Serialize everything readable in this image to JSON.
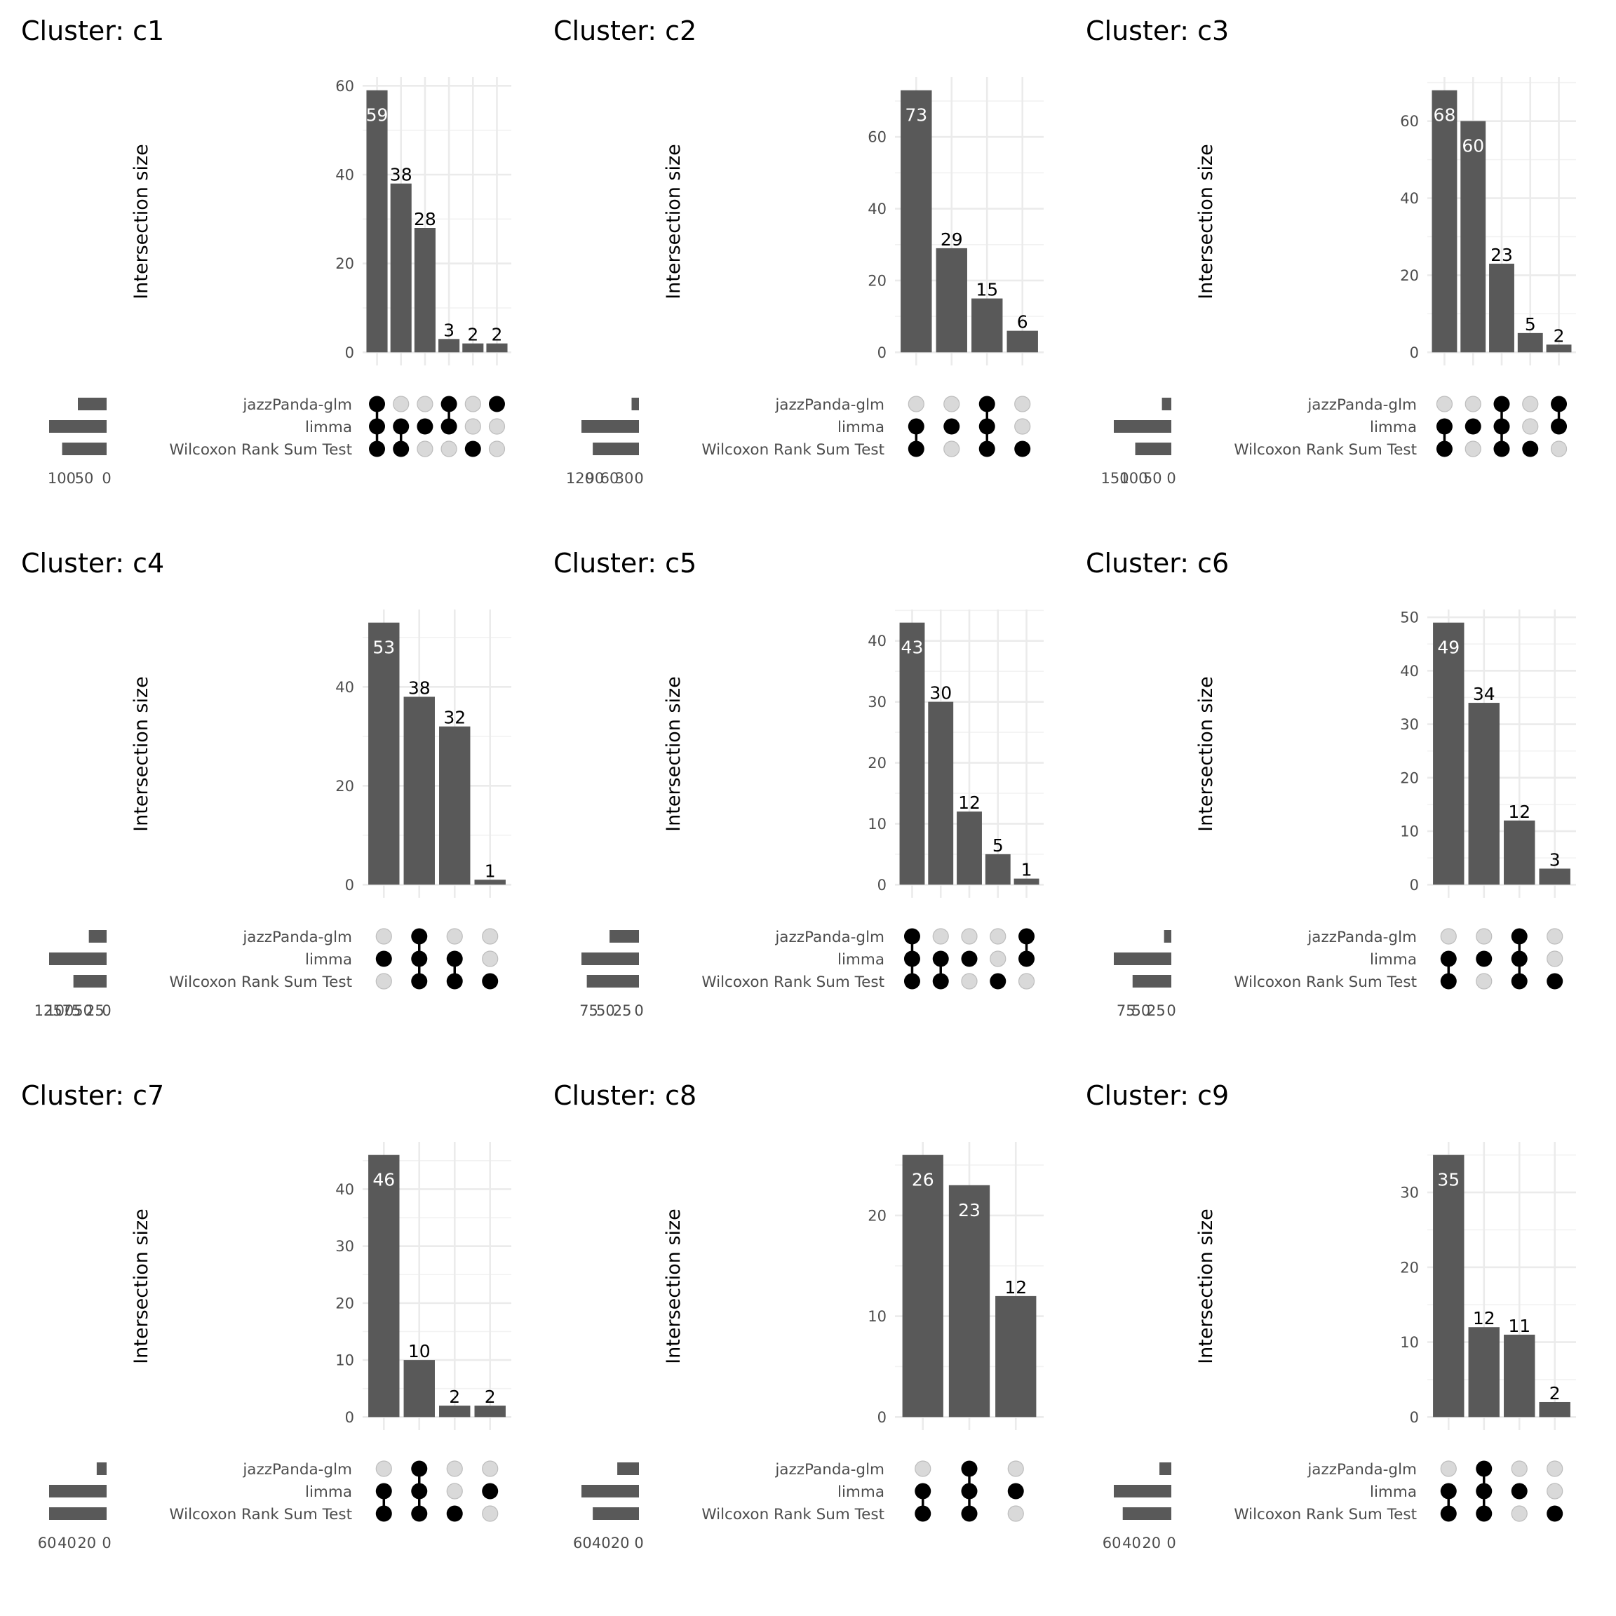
{
  "chart_data": {
    "type": "bar",
    "subtype": "upset",
    "sets": [
      "jazzPanda-glm",
      "limma",
      "Wilcoxon Rank Sum Test"
    ],
    "ylabel": "Intersection size",
    "colors": {
      "bar": "#595959",
      "dot_active": "#000000",
      "dot_inactive": "#d9d9d9",
      "dot_inactive_stroke": "#bdbdbd",
      "grid": "#ebebeb",
      "tick_text": "#4d4d4d",
      "label_inside": "#ffffff",
      "label_outside": "#000000"
    },
    "panels": [
      {
        "title": "Cluster: c1",
        "yticks": [
          0,
          20,
          40,
          60
        ],
        "set_size_ticks": [
          100,
          50,
          0
        ],
        "set_sizes": [
          64,
          128,
          99
        ],
        "intersections": [
          {
            "value": 59,
            "members": [
              1,
              1,
              1
            ]
          },
          {
            "value": 38,
            "members": [
              0,
              1,
              1
            ]
          },
          {
            "value": 28,
            "members": [
              0,
              1,
              0
            ]
          },
          {
            "value": 3,
            "members": [
              1,
              1,
              0
            ]
          },
          {
            "value": 2,
            "members": [
              0,
              0,
              1
            ]
          },
          {
            "value": 2,
            "members": [
              1,
              0,
              0
            ]
          }
        ]
      },
      {
        "title": "Cluster: c2",
        "yticks": [
          0,
          20,
          40,
          60
        ],
        "set_size_ticks": [
          120,
          90,
          60,
          30,
          0
        ],
        "set_sizes": [
          15,
          117,
          94
        ],
        "intersections": [
          {
            "value": 73,
            "members": [
              0,
              1,
              1
            ]
          },
          {
            "value": 29,
            "members": [
              0,
              1,
              0
            ]
          },
          {
            "value": 15,
            "members": [
              1,
              1,
              1
            ]
          },
          {
            "value": 6,
            "members": [
              0,
              0,
              1
            ]
          }
        ]
      },
      {
        "title": "Cluster: c3",
        "yticks": [
          0,
          20,
          40,
          60
        ],
        "set_size_ticks": [
          150,
          100,
          50,
          0
        ],
        "set_sizes": [
          25,
          153,
          96
        ],
        "intersections": [
          {
            "value": 68,
            "members": [
              0,
              1,
              1
            ]
          },
          {
            "value": 60,
            "members": [
              0,
              1,
              0
            ]
          },
          {
            "value": 23,
            "members": [
              1,
              1,
              1
            ]
          },
          {
            "value": 5,
            "members": [
              0,
              0,
              1
            ]
          },
          {
            "value": 2,
            "members": [
              1,
              1,
              0
            ]
          }
        ]
      },
      {
        "title": "Cluster: c4",
        "yticks": [
          0,
          20,
          40
        ],
        "set_size_ticks": [
          125,
          100,
          75,
          50,
          25,
          0
        ],
        "set_sizes": [
          38,
          123,
          71
        ],
        "intersections": [
          {
            "value": 53,
            "members": [
              0,
              1,
              0
            ]
          },
          {
            "value": 38,
            "members": [
              1,
              1,
              1
            ]
          },
          {
            "value": 32,
            "members": [
              0,
              1,
              1
            ]
          },
          {
            "value": 1,
            "members": [
              0,
              0,
              1
            ]
          }
        ]
      },
      {
        "title": "Cluster: c5",
        "yticks": [
          0,
          10,
          20,
          30,
          40
        ],
        "set_size_ticks": [
          75,
          50,
          25,
          0
        ],
        "set_sizes": [
          44,
          86,
          78
        ],
        "intersections": [
          {
            "value": 43,
            "members": [
              1,
              1,
              1
            ]
          },
          {
            "value": 30,
            "members": [
              0,
              1,
              1
            ]
          },
          {
            "value": 12,
            "members": [
              0,
              1,
              0
            ]
          },
          {
            "value": 5,
            "members": [
              0,
              0,
              1
            ]
          },
          {
            "value": 1,
            "members": [
              1,
              1,
              0
            ]
          }
        ]
      },
      {
        "title": "Cluster: c6",
        "yticks": [
          0,
          10,
          20,
          30,
          40,
          50
        ],
        "set_size_ticks": [
          75,
          50,
          25,
          0
        ],
        "set_sizes": [
          12,
          95,
          64
        ],
        "intersections": [
          {
            "value": 49,
            "members": [
              0,
              1,
              1
            ]
          },
          {
            "value": 34,
            "members": [
              0,
              1,
              0
            ]
          },
          {
            "value": 12,
            "members": [
              1,
              1,
              1
            ]
          },
          {
            "value": 3,
            "members": [
              0,
              0,
              1
            ]
          }
        ]
      },
      {
        "title": "Cluster: c7",
        "yticks": [
          0,
          10,
          20,
          30,
          40
        ],
        "set_size_ticks": [
          60,
          40,
          20,
          0
        ],
        "set_sizes": [
          10,
          58,
          58
        ],
        "intersections": [
          {
            "value": 46,
            "members": [
              0,
              1,
              1
            ]
          },
          {
            "value": 10,
            "members": [
              1,
              1,
              1
            ]
          },
          {
            "value": 2,
            "members": [
              0,
              0,
              1
            ]
          },
          {
            "value": 2,
            "members": [
              0,
              1,
              0
            ]
          }
        ]
      },
      {
        "title": "Cluster: c8",
        "yticks": [
          0,
          10,
          20
        ],
        "set_size_ticks": [
          60,
          40,
          20,
          0
        ],
        "set_sizes": [
          23,
          61,
          49
        ],
        "intersections": [
          {
            "value": 26,
            "members": [
              0,
              1,
              1
            ]
          },
          {
            "value": 23,
            "members": [
              1,
              1,
              1
            ]
          },
          {
            "value": 12,
            "members": [
              0,
              1,
              0
            ]
          }
        ]
      },
      {
        "title": "Cluster: c9",
        "yticks": [
          0,
          10,
          20,
          30
        ],
        "set_size_ticks": [
          60,
          40,
          20,
          0
        ],
        "set_sizes": [
          12,
          58,
          49
        ],
        "intersections": [
          {
            "value": 35,
            "members": [
              0,
              1,
              1
            ]
          },
          {
            "value": 12,
            "members": [
              1,
              1,
              1
            ]
          },
          {
            "value": 11,
            "members": [
              0,
              1,
              0
            ]
          },
          {
            "value": 2,
            "members": [
              0,
              0,
              1
            ]
          }
        ]
      }
    ]
  }
}
